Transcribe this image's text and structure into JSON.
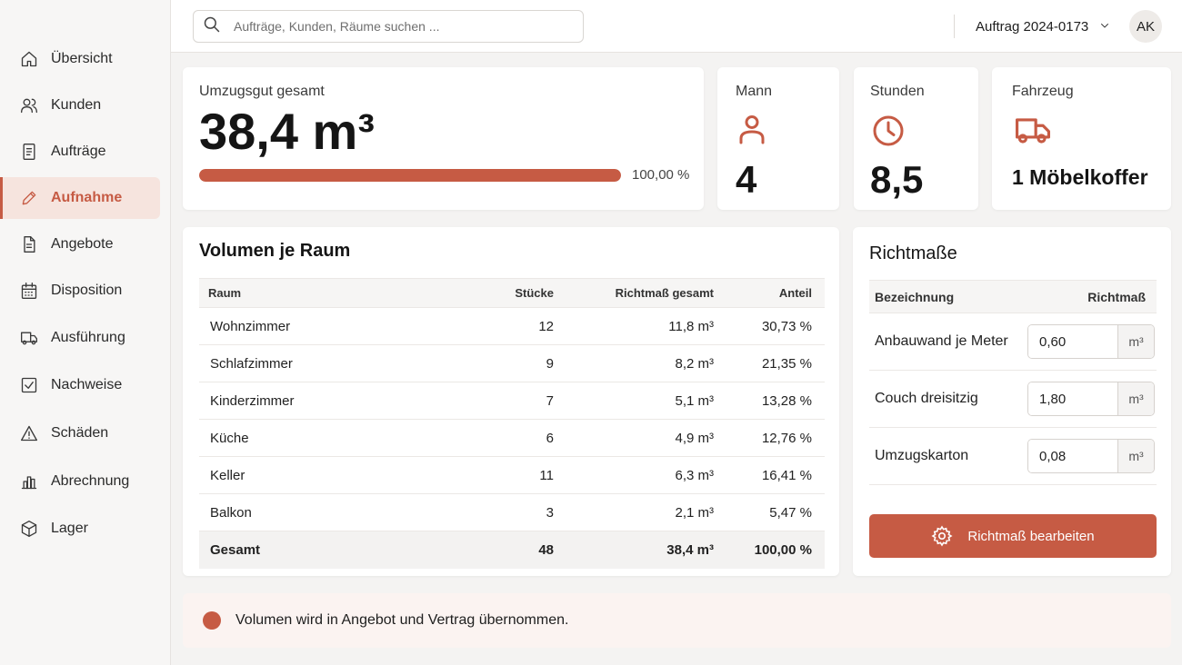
{
  "colors": {
    "accent": "#c65b44",
    "accent_light": "#f6e4de"
  },
  "sidebar": {
    "items": [
      {
        "label": "Übersicht",
        "icon": "home-icon",
        "active": false
      },
      {
        "label": "Kunden",
        "icon": "users-icon",
        "active": false
      },
      {
        "label": "Aufträge",
        "icon": "document-icon",
        "active": false
      },
      {
        "label": "Aufnahme",
        "icon": "pencil-icon",
        "active": true
      },
      {
        "label": "Angebote",
        "icon": "file-icon",
        "active": false
      },
      {
        "label": "Disposition",
        "icon": "calendar-icon",
        "active": false
      },
      {
        "label": "Ausführung",
        "icon": "truck-icon",
        "active": false
      },
      {
        "label": "Nachweise",
        "icon": "checkbox-icon",
        "active": false
      },
      {
        "label": "Schäden",
        "icon": "warning-icon",
        "active": false
      },
      {
        "label": "Abrechnung",
        "icon": "bar-chart-icon",
        "active": false
      },
      {
        "label": "Lager",
        "icon": "box-icon",
        "active": false
      }
    ]
  },
  "header": {
    "search_placeholder": "Aufträge, Kunden, Räume suchen ...",
    "order_selected": "Auftrag 2024-0173",
    "avatar_initials": "AK"
  },
  "summary": {
    "volume_label": "Umzugsgut gesamt",
    "volume_value": "38,4 m³",
    "progress_fraction": 1.0,
    "progress_label": "100,00 %",
    "men_label": "Mann",
    "men_value": "4",
    "hours_label": "Stunden",
    "hours_value": "8,5",
    "vehicle_label": "Fahrzeug",
    "vehicle_value": "1 Möbelkoffer"
  },
  "rooms": {
    "title": "Volumen je Raum",
    "columns": [
      "Raum",
      "Stücke",
      "Richtmaß gesamt",
      "Anteil"
    ],
    "rows": [
      {
        "room": "Wohnzimmer",
        "pieces": "12",
        "volume": "11,8 m³",
        "share": "30,73 %"
      },
      {
        "room": "Schlafzimmer",
        "pieces": "9",
        "volume": "8,2 m³",
        "share": "21,35 %"
      },
      {
        "room": "Kinderzimmer",
        "pieces": "7",
        "volume": "5,1 m³",
        "share": "13,28 %"
      },
      {
        "room": "Küche",
        "pieces": "6",
        "volume": "4,9 m³",
        "share": "12,76 %"
      },
      {
        "room": "Keller",
        "pieces": "11",
        "volume": "6,3 m³",
        "share": "16,41 %"
      },
      {
        "room": "Balkon",
        "pieces": "3",
        "volume": "2,1 m³",
        "share": "5,47 %"
      }
    ],
    "total": {
      "room": "Gesamt",
      "pieces": "48",
      "volume": "38,4 m³",
      "share": "100,00 %"
    }
  },
  "measures": {
    "title": "Richtmaße",
    "columns": [
      "Bezeichnung",
      "Richtmaß"
    ],
    "rows": [
      {
        "name": "Anbauwand je Meter",
        "value": "0,60",
        "unit": "m³"
      },
      {
        "name": "Couch dreisitzig",
        "value": "1,80",
        "unit": "m³"
      },
      {
        "name": "Umzugskarton",
        "value": "0,08",
        "unit": "m³"
      }
    ],
    "edit_button": "Richtmaß bearbeiten"
  },
  "notice": {
    "text": "Volumen wird in Angebot und Vertrag übernommen."
  }
}
